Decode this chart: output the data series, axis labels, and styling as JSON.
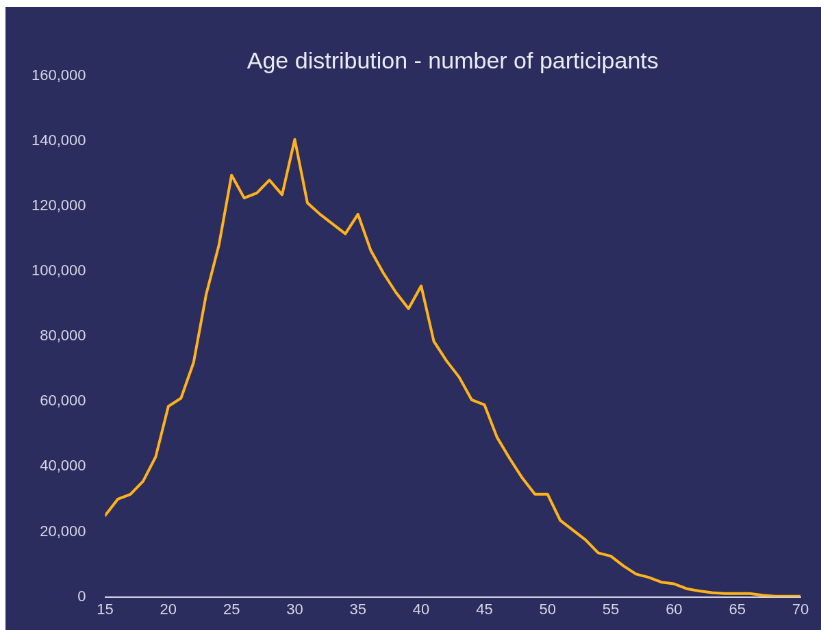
{
  "chart_data": {
    "type": "line",
    "title": "Age distribution - number of participants",
    "x": [
      15,
      16,
      17,
      18,
      19,
      20,
      21,
      22,
      23,
      24,
      25,
      26,
      27,
      28,
      29,
      30,
      31,
      32,
      33,
      34,
      35,
      36,
      37,
      38,
      39,
      40,
      41,
      42,
      43,
      44,
      45,
      46,
      47,
      48,
      49,
      50,
      51,
      52,
      53,
      54,
      55,
      56,
      57,
      58,
      59,
      60,
      61,
      62,
      63,
      64,
      65,
      66,
      67,
      68,
      69,
      70
    ],
    "series": [
      {
        "color": "#ffb31a",
        "values": [
          25000,
          30000,
          31500,
          35500,
          43000,
          58500,
          61000,
          72000,
          93000,
          108000,
          129500,
          122500,
          124000,
          128000,
          123500,
          140500,
          121000,
          117500,
          114500,
          111500,
          117500,
          106500,
          99500,
          93500,
          88500,
          95500,
          78500,
          72500,
          67500,
          60500,
          59000,
          49000,
          42500,
          36500,
          31500,
          31500,
          23500,
          20500,
          17500,
          13500,
          12500,
          9500,
          7000,
          6000,
          4500,
          4000,
          2500,
          1800,
          1300,
          1000,
          1000,
          1000,
          500,
          200,
          200,
          200
        ]
      }
    ],
    "xlim": [
      15,
      70
    ],
    "xticks": [
      15,
      20,
      25,
      30,
      35,
      40,
      45,
      50,
      55,
      60,
      65,
      70
    ],
    "ylim": [
      0,
      160000
    ],
    "yticks": [
      {
        "value": 0,
        "label": "0"
      },
      {
        "value": 20000,
        "label": "20,000"
      },
      {
        "value": 40000,
        "label": "40,000"
      },
      {
        "value": 60000,
        "label": "60,000"
      },
      {
        "value": 80000,
        "label": "80,000"
      },
      {
        "value": 100000,
        "label": "100,000"
      },
      {
        "value": 120000,
        "label": "120,000"
      },
      {
        "value": 140000,
        "label": "140,000"
      },
      {
        "value": 160000,
        "label": "160,000"
      }
    ],
    "grid": false,
    "legend": false,
    "marker": "none",
    "line_style": "solid"
  }
}
